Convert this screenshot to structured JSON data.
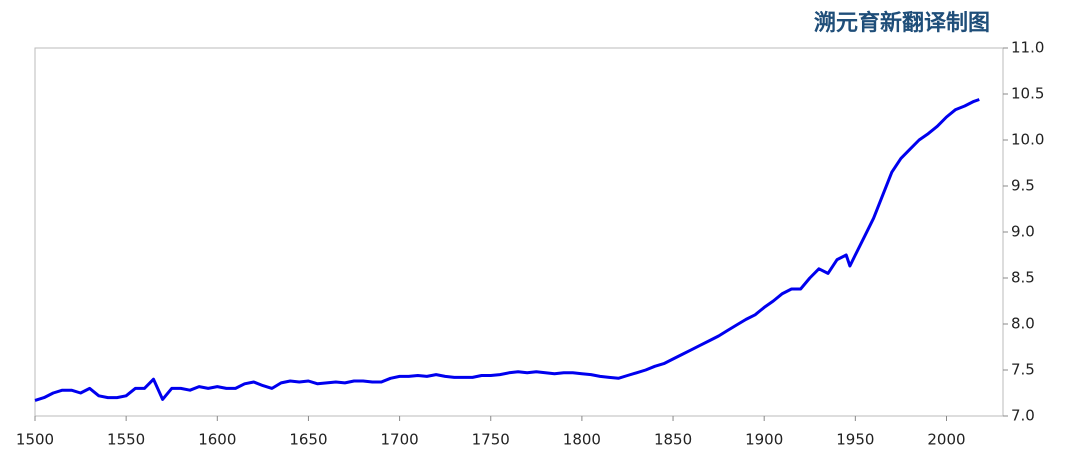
{
  "chart_data": {
    "type": "line",
    "title": "溯元育新翻译制图",
    "x": [
      1500,
      1505,
      1510,
      1515,
      1520,
      1525,
      1530,
      1535,
      1540,
      1545,
      1550,
      1555,
      1560,
      1565,
      1570,
      1575,
      1580,
      1585,
      1590,
      1595,
      1600,
      1605,
      1610,
      1615,
      1620,
      1625,
      1630,
      1635,
      1640,
      1645,
      1650,
      1655,
      1660,
      1665,
      1670,
      1675,
      1680,
      1685,
      1690,
      1695,
      1700,
      1705,
      1710,
      1715,
      1720,
      1725,
      1730,
      1735,
      1740,
      1745,
      1750,
      1755,
      1760,
      1765,
      1770,
      1775,
      1780,
      1785,
      1790,
      1795,
      1800,
      1805,
      1810,
      1815,
      1820,
      1825,
      1830,
      1835,
      1840,
      1845,
      1850,
      1855,
      1860,
      1865,
      1870,
      1875,
      1880,
      1885,
      1890,
      1895,
      1900,
      1905,
      1910,
      1915,
      1920,
      1925,
      1930,
      1935,
      1940,
      1945,
      1947,
      1950,
      1955,
      1960,
      1965,
      1970,
      1975,
      1980,
      1985,
      1990,
      1995,
      2000,
      2005,
      2010,
      2015,
      2018
    ],
    "series": [
      {
        "color": "#0000ee",
        "values": [
          7.17,
          7.2,
          7.25,
          7.28,
          7.28,
          7.25,
          7.3,
          7.22,
          7.2,
          7.2,
          7.22,
          7.3,
          7.3,
          7.4,
          7.18,
          7.3,
          7.3,
          7.28,
          7.32,
          7.3,
          7.32,
          7.3,
          7.3,
          7.35,
          7.37,
          7.33,
          7.3,
          7.36,
          7.38,
          7.37,
          7.38,
          7.35,
          7.36,
          7.37,
          7.36,
          7.38,
          7.38,
          7.37,
          7.37,
          7.41,
          7.43,
          7.43,
          7.44,
          7.43,
          7.45,
          7.43,
          7.42,
          7.42,
          7.42,
          7.44,
          7.44,
          7.45,
          7.47,
          7.48,
          7.47,
          7.48,
          7.47,
          7.46,
          7.47,
          7.47,
          7.46,
          7.45,
          7.43,
          7.42,
          7.41,
          7.44,
          7.47,
          7.5,
          7.54,
          7.57,
          7.62,
          7.67,
          7.72,
          7.77,
          7.82,
          7.87,
          7.93,
          7.99,
          8.05,
          8.1,
          8.18,
          8.25,
          8.33,
          8.38,
          8.38,
          8.5,
          8.6,
          8.55,
          8.7,
          8.75,
          8.63,
          8.75,
          8.95,
          9.15,
          9.4,
          9.65,
          9.8,
          9.9,
          10.0,
          10.07,
          10.15,
          10.25,
          10.33,
          10.37,
          10.42,
          10.44
        ]
      }
    ],
    "xlim": [
      1500,
      2031
    ],
    "xticks": [
      1500,
      1550,
      1600,
      1650,
      1700,
      1750,
      1800,
      1850,
      1900,
      1950,
      2000
    ],
    "ylim": [
      7,
      11
    ],
    "yticks": [
      {
        "value": 7,
        "label": "7.0"
      },
      7.5,
      {
        "value": 8,
        "label": "8.0"
      },
      8.5,
      {
        "value": 9,
        "label": "9.0"
      },
      9.5,
      {
        "value": 10,
        "label": "10.0"
      },
      10.5,
      {
        "value": 11,
        "label": "11.0"
      }
    ]
  }
}
